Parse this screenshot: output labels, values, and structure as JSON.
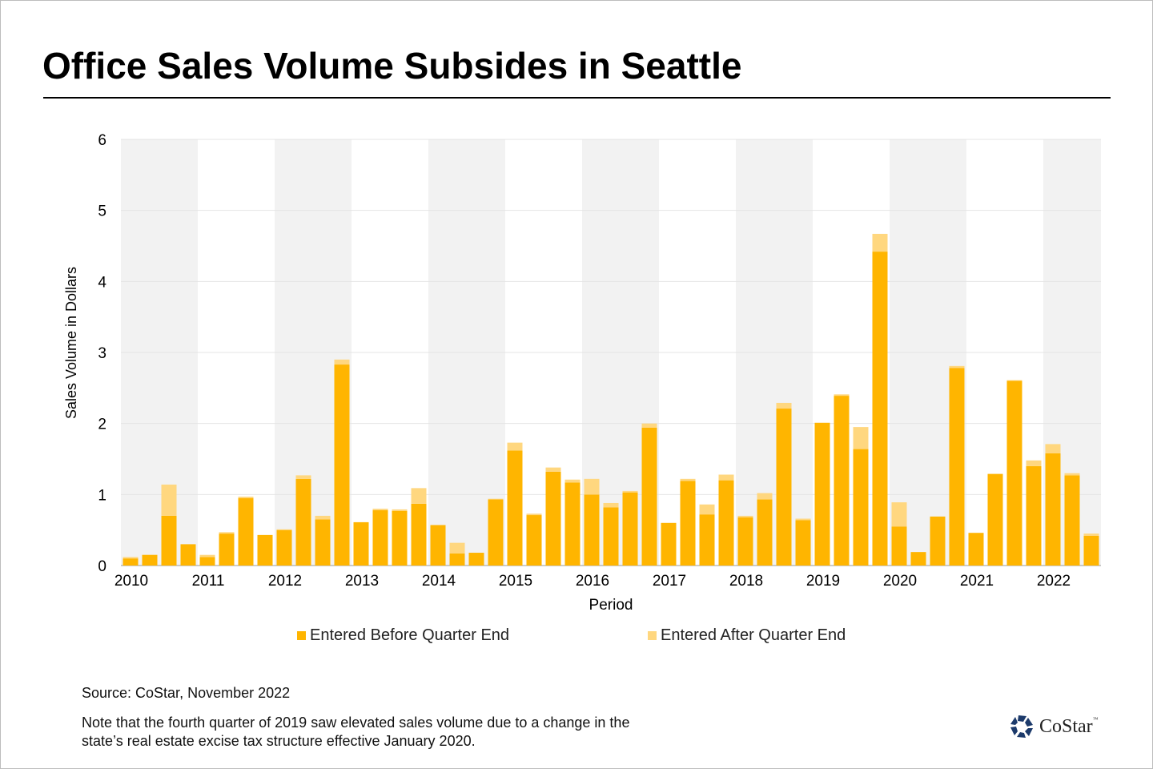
{
  "chart_data": {
    "type": "bar",
    "stacked": true,
    "title": "Office Sales Volume Subsides in Seattle",
    "xlabel": "Period",
    "ylabel": "Sales Volume  in Dollars",
    "ylim": [
      0,
      6
    ],
    "yticks": [
      "0",
      "1",
      "2",
      "3",
      "4",
      "5",
      "6"
    ],
    "xticks": [
      "2010",
      "2011",
      "2012",
      "2013",
      "2014",
      "2015",
      "2016",
      "2017",
      "2018",
      "2019",
      "2020",
      "2021",
      "2022"
    ],
    "grid": true,
    "legend_position": "bottom",
    "categories": [
      "2010 Q1",
      "2010 Q2",
      "2010 Q3",
      "2010 Q4",
      "2011 Q1",
      "2011 Q2",
      "2011 Q3",
      "2011 Q4",
      "2012 Q1",
      "2012 Q2",
      "2012 Q3",
      "2012 Q4",
      "2013 Q1",
      "2013 Q2",
      "2013 Q3",
      "2013 Q4",
      "2014 Q1",
      "2014 Q2",
      "2014 Q3",
      "2014 Q4",
      "2015 Q1",
      "2015 Q2",
      "2015 Q3",
      "2015 Q4",
      "2016 Q1",
      "2016 Q2",
      "2016 Q3",
      "2016 Q4",
      "2017 Q1",
      "2017 Q2",
      "2017 Q3",
      "2017 Q4",
      "2018 Q1",
      "2018 Q2",
      "2018 Q3",
      "2018 Q4",
      "2019 Q1",
      "2019 Q2",
      "2019 Q3",
      "2019 Q4",
      "2020 Q1",
      "2020 Q2",
      "2020 Q3",
      "2020 Q4",
      "2021 Q1",
      "2021 Q2",
      "2021 Q3",
      "2021 Q4",
      "2022 Q1",
      "2022 Q2",
      "2022 Q3"
    ],
    "series": [
      {
        "name": "Entered Before Quarter End",
        "color": "#FFB500",
        "values": [
          0.1,
          0.15,
          0.7,
          0.3,
          0.12,
          0.45,
          0.95,
          0.43,
          0.5,
          1.22,
          0.65,
          2.83,
          0.61,
          0.78,
          0.77,
          0.87,
          0.57,
          0.17,
          0.18,
          0.93,
          1.62,
          0.71,
          1.32,
          1.17,
          1.0,
          0.82,
          1.03,
          1.94,
          0.6,
          1.19,
          0.72,
          1.2,
          0.68,
          0.93,
          2.21,
          0.64,
          2.01,
          2.39,
          1.64,
          4.42,
          0.55,
          0.19,
          0.69,
          2.78,
          0.46,
          1.29,
          2.6,
          1.4,
          1.58,
          1.27,
          0.42
        ]
      },
      {
        "name": "Entered After Quarter End",
        "color": "#FFD77F",
        "values": [
          0.02,
          0.0,
          0.44,
          0.0,
          0.03,
          0.02,
          0.02,
          0.0,
          0.01,
          0.05,
          0.05,
          0.07,
          0.0,
          0.02,
          0.02,
          0.22,
          0.0,
          0.15,
          0.0,
          0.01,
          0.11,
          0.02,
          0.06,
          0.04,
          0.22,
          0.06,
          0.02,
          0.06,
          0.0,
          0.03,
          0.14,
          0.08,
          0.02,
          0.09,
          0.08,
          0.02,
          0.0,
          0.02,
          0.31,
          0.25,
          0.34,
          0.0,
          0.0,
          0.03,
          0.0,
          0.0,
          0.01,
          0.08,
          0.13,
          0.03,
          0.03
        ]
      }
    ]
  },
  "footer": {
    "source": "Source: CoStar, November 2022",
    "note": "Note that the fourth quarter of 2019 saw elevated sales volume due to a change in the state’s real estate excise tax structure effective January 2020.",
    "logo": "CoStar",
    "logo_tm": "™"
  }
}
